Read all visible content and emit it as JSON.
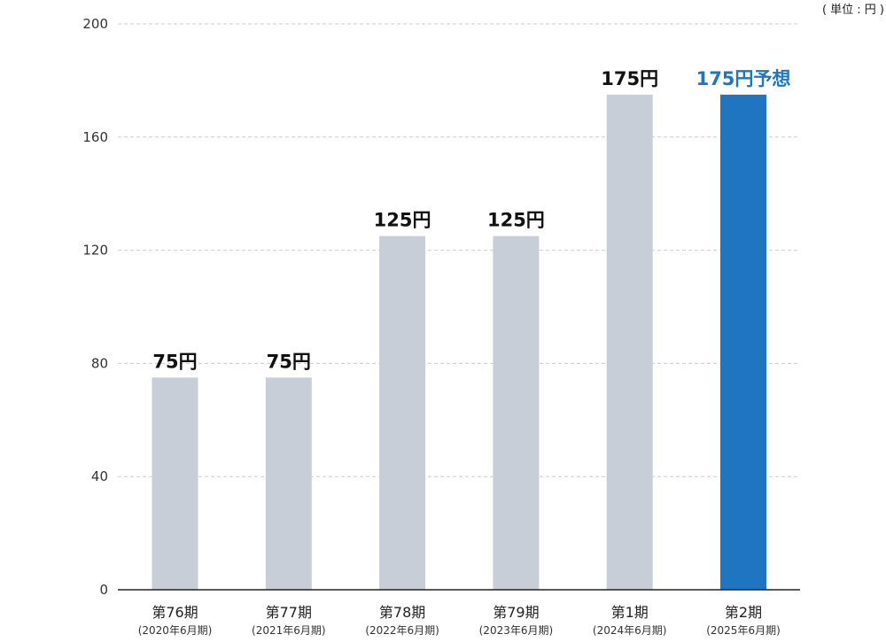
{
  "unit_note": "( 単位 : 円 )",
  "colors": {
    "actual_bar": "#c7ced7",
    "forecast_bar": "#1f75c0",
    "forecast_label": "#1f75c0",
    "label": "#111111",
    "grid": "#cccccc",
    "axis": "#222222"
  },
  "chart_data": {
    "type": "bar",
    "categories": [
      "第76期",
      "第77期",
      "第78期",
      "第79期",
      "第1期",
      "第2期"
    ],
    "category_subtitles": [
      "(2020年6月期)",
      "(2021年6月期)",
      "(2022年6月期)",
      "(2023年6月期)",
      "(2024年6月期)",
      "(2025年6月期)"
    ],
    "values": [
      75,
      75,
      125,
      125,
      175,
      175
    ],
    "data_labels": [
      "75円",
      "75円",
      "125円",
      "125円",
      "175円",
      "175円予想"
    ],
    "highlighted": [
      false,
      false,
      false,
      false,
      false,
      true
    ],
    "ylim": [
      0,
      200
    ],
    "yticks": [
      0,
      40,
      80,
      120,
      160,
      200
    ],
    "grid": true,
    "title": "",
    "xlabel": "",
    "ylabel": ""
  }
}
